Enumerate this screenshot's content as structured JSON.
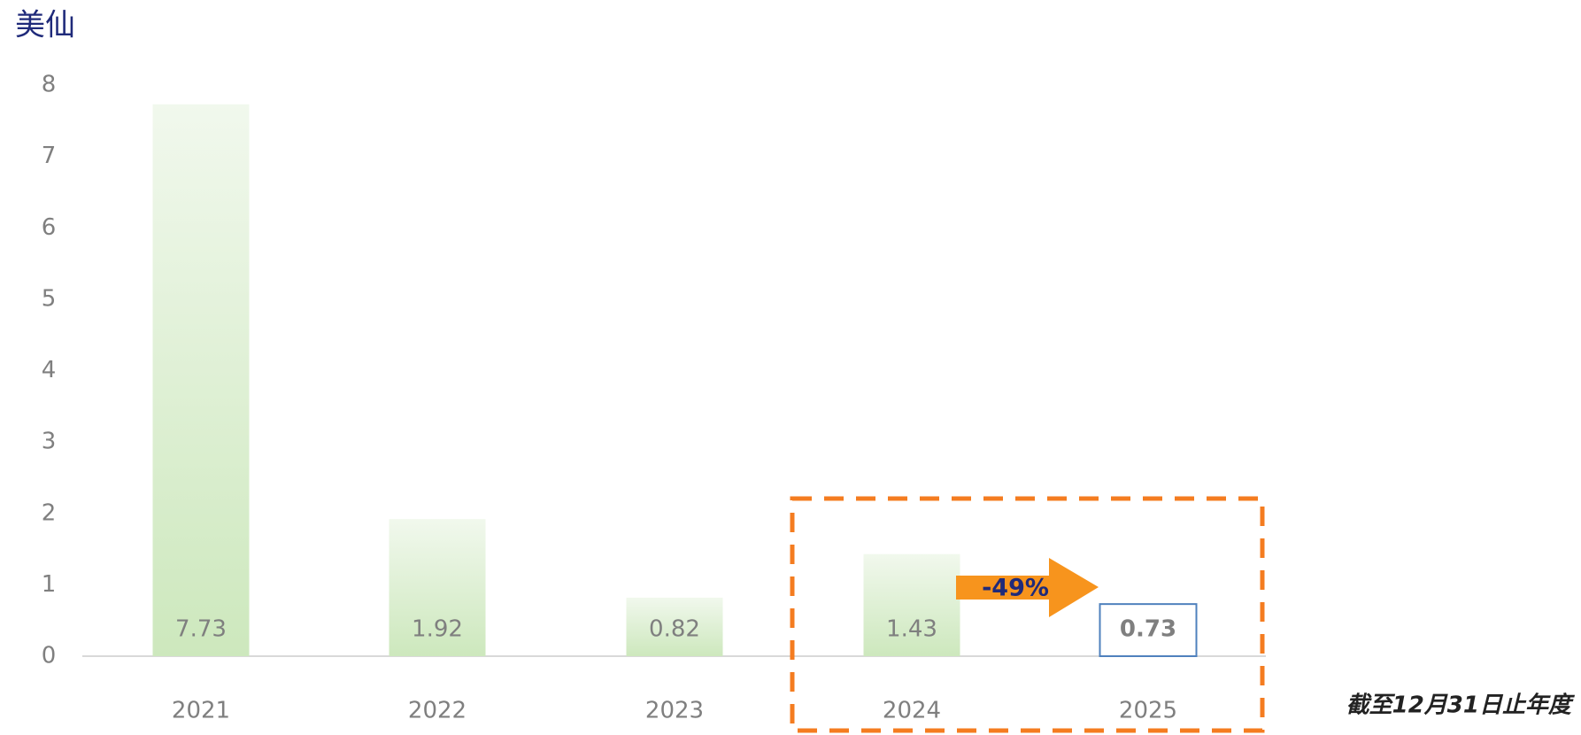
{
  "chart_data": {
    "type": "bar",
    "title": "美仙",
    "categories": [
      "2021",
      "2022",
      "2023",
      "2024",
      "2025"
    ],
    "values": [
      7.73,
      1.92,
      0.82,
      1.43,
      0.73
    ],
    "ylim": [
      0,
      8
    ],
    "yticks": [
      0,
      1,
      2,
      3,
      4,
      5,
      6,
      7,
      8
    ],
    "grid": false,
    "color": "#cde8bd",
    "annotation": "-49%",
    "note": "截至12月31日止年度"
  }
}
